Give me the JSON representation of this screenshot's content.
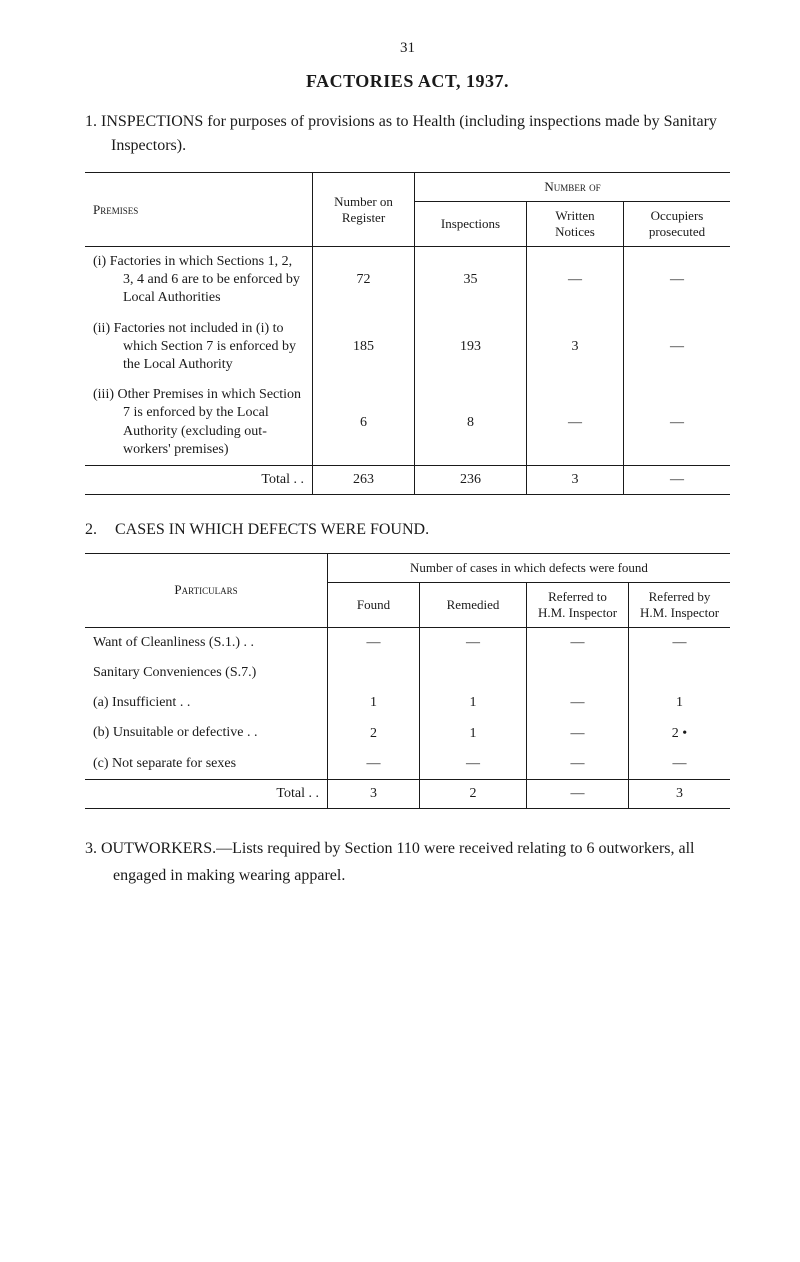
{
  "page_number": "31",
  "main_title": "FACTORIES ACT, 1937.",
  "section1": {
    "num": "1.",
    "text": "INSPECTIONS for purposes of provisions as to Health (including inspections made by Sanitary Inspectors)."
  },
  "table1": {
    "headers": {
      "premises": "Premises",
      "number_on_register": "Number on Register",
      "number_of": "Number of",
      "inspections": "Inspections",
      "written_notices": "Written Notices",
      "occupiers_prosecuted": "Occupiers prosecuted"
    },
    "rows": [
      {
        "roman": "(i)",
        "text": "Factories in which Sections 1, 2, 3, 4 and 6 are to be enforced by Local Authorities",
        "reg": "72",
        "insp": "35",
        "wr": "—",
        "occ": "—"
      },
      {
        "roman": "(ii)",
        "text": "Factories not included in (i) to which Section 7 is enforced by the Local Authority",
        "reg": "185",
        "insp": "193",
        "wr": "3",
        "occ": "—"
      },
      {
        "roman": "(iii)",
        "text": "Other Premises in which Section 7 is enforced by the Local Authority (excluding out-workers' premises)",
        "reg": "6",
        "insp": "8",
        "wr": "—",
        "occ": "—"
      }
    ],
    "total": {
      "label": "Total   . .",
      "reg": "263",
      "insp": "236",
      "wr": "3",
      "occ": "—"
    }
  },
  "section2": {
    "num": "2.",
    "title": "CASES IN WHICH DEFECTS WERE FOUND."
  },
  "table2": {
    "headers": {
      "particulars": "Particulars",
      "number_of_cases": "Number of cases in which defects were found",
      "found": "Found",
      "remedied": "Remedied",
      "referred_to": "Referred to H.M. Inspector",
      "referred_by": "Referred by H.M. Inspector"
    },
    "rows": [
      {
        "text": "Want of Cleanliness (S.1.) . .",
        "indent": false,
        "f": "—",
        "r": "—",
        "ref1": "—",
        "ref2": "—"
      },
      {
        "text": "Sanitary Conveniences (S.7.)",
        "indent": false,
        "f": "",
        "r": "",
        "ref1": "",
        "ref2": ""
      },
      {
        "text": "(a)  Insufficient  . .",
        "indent": true,
        "f": "1",
        "r": "1",
        "ref1": "—",
        "ref2": "1"
      },
      {
        "text": "(b)  Unsuitable or defective  . .",
        "indent": true,
        "f": "2",
        "r": "1",
        "ref1": "—",
        "ref2": "2  •"
      },
      {
        "text": "(c)  Not separate for sexes",
        "indent": true,
        "f": "—",
        "r": "—",
        "ref1": "—",
        "ref2": "—"
      }
    ],
    "total": {
      "label": "Total   . .",
      "f": "3",
      "r": "2",
      "ref1": "—",
      "ref2": "3"
    }
  },
  "section3": {
    "num": "3.",
    "text": "OUTWORKERS.—Lists required by Section 110 were received relating to 6 outworkers, all engaged in making wearing apparel."
  }
}
